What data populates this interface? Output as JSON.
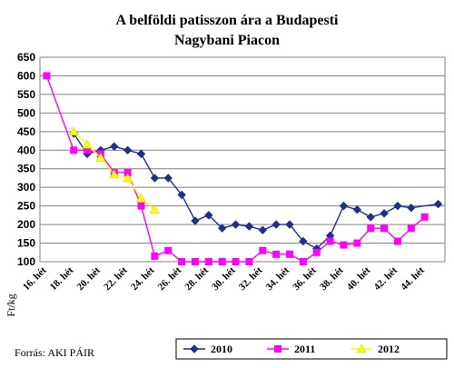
{
  "chart_data": {
    "type": "line",
    "title_line1": "A belföldi patisszon ára a Budapesti",
    "title_line2": "Nagybani Piacon",
    "ylabel": "Ft/kg",
    "source": "Forrás: AKI PÁIR",
    "ylim": [
      100,
      650
    ],
    "yticks": [
      100,
      150,
      200,
      250,
      300,
      350,
      400,
      450,
      500,
      550,
      600,
      650
    ],
    "x_range": [
      16,
      45
    ],
    "x_tick_labels": [
      "16. hét",
      "18. hét",
      "20. hét",
      "22. hét",
      "24. hét",
      "26. hét",
      "28. hét",
      "30. hét",
      "32. hét",
      "34. hét",
      "36. hét",
      "38. hét",
      "40. hét",
      "42. hét",
      "44. hét"
    ],
    "x_tick_weeks": [
      16,
      18,
      20,
      22,
      24,
      26,
      28,
      30,
      32,
      34,
      36,
      38,
      40,
      42,
      44
    ],
    "grid": true,
    "legend_position": "bottom",
    "series": [
      {
        "name": "2010",
        "color": "#1f2f8c",
        "marker": "diamond",
        "x": [
          18,
          19,
          20,
          21,
          22,
          23,
          24,
          25,
          26,
          27,
          28,
          29,
          30,
          31,
          32,
          33,
          34,
          35,
          36,
          37,
          38,
          39,
          40,
          41,
          42,
          43,
          45
        ],
        "values": [
          445,
          390,
          400,
          410,
          400,
          390,
          325,
          325,
          280,
          210,
          225,
          190,
          200,
          195,
          185,
          200,
          200,
          155,
          135,
          170,
          250,
          240,
          220,
          230,
          250,
          245,
          255
        ]
      },
      {
        "name": "2011",
        "color": "#ff00ff",
        "marker": "square",
        "x": [
          16,
          18,
          19,
          20,
          21,
          22,
          23,
          24,
          25,
          26,
          27,
          28,
          29,
          30,
          31,
          32,
          33,
          34,
          35,
          36,
          37,
          38,
          39,
          40,
          41,
          42,
          43,
          44
        ],
        "values": [
          600,
          400,
          400,
          390,
          340,
          340,
          250,
          115,
          130,
          100,
          100,
          100,
          100,
          100,
          100,
          130,
          120,
          120,
          100,
          125,
          155,
          145,
          150,
          190,
          190,
          155,
          190,
          220
        ]
      },
      {
        "name": "2012",
        "color": "#ffff00",
        "marker": "triangle",
        "x": [
          18,
          19,
          20,
          21,
          22,
          23,
          24
        ],
        "values": [
          450,
          415,
          380,
          335,
          325,
          270,
          240
        ]
      }
    ]
  }
}
